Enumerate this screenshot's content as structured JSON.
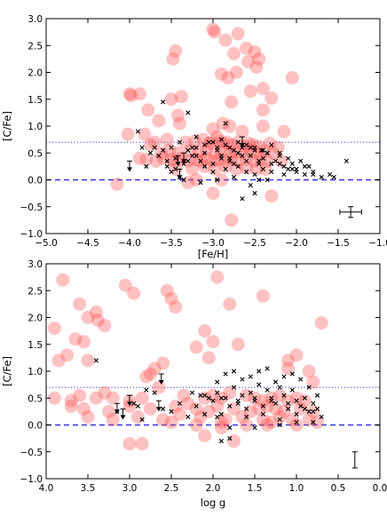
{
  "chart_data": [
    {
      "type": "scatter",
      "xlabel": "[Fe/H]",
      "ylabel": "[C/Fe]",
      "xlim": [
        -5.0,
        -1.0
      ],
      "ylim": [
        -1.0,
        3.0
      ],
      "xticks": [
        "−5.0",
        "−4.5",
        "−4.0",
        "−3.5",
        "−3.0",
        "−2.5",
        "−2.0",
        "−1.5",
        "−1.0"
      ],
      "yticks": [
        "−1.0",
        "−0.5",
        "0.0",
        "0.5",
        "1.0",
        "1.5",
        "2.0",
        "2.5",
        "3.0"
      ],
      "xtick_values": [
        -5.0,
        -4.5,
        -4.0,
        -3.5,
        -3.0,
        -2.5,
        -2.0,
        -1.5,
        -1.0
      ],
      "ytick_values": [
        -1.0,
        -0.5,
        0.0,
        0.5,
        1.0,
        1.5,
        2.0,
        2.5,
        3.0
      ],
      "hlines": [
        {
          "y": 0.0,
          "style": "dashed",
          "color": "#3333dd"
        },
        {
          "y": 0.7,
          "style": "dotted",
          "color": "#3333dd"
        }
      ],
      "error_bar": {
        "x": -1.35,
        "y": -0.6,
        "xerr": 0.13,
        "yerr": 0.1
      },
      "series": [
        {
          "marker": "circle",
          "color": "#ff4d4d",
          "x": [
            -3.0,
            -2.98,
            -2.7,
            -2.85,
            -3.45,
            -3.48,
            -2.6,
            -2.75,
            -2.5,
            -2.45,
            -2.58,
            -2.48,
            -2.72,
            -2.9,
            -2.82,
            -2.05,
            -2.4,
            -2.55,
            -4.0,
            -3.98,
            -3.88,
            -2.78,
            -3.5,
            -3.38,
            -2.3,
            -2.4,
            -3.42,
            -3.78,
            -3.65,
            -3.4,
            -2.88,
            -2.8,
            -2.4,
            -4.02,
            -3.82,
            -3.0,
            -2.95,
            -2.65,
            -2.15,
            -3.75,
            -3.7,
            -3.55,
            -3.33,
            -3.22,
            -3.12,
            -3.05,
            -3.02,
            -2.92,
            -2.88,
            -2.83,
            -2.77,
            -2.7,
            -2.62,
            -2.57,
            -2.52,
            -2.45,
            -2.32,
            -2.22,
            -3.62,
            -3.52,
            -3.42,
            -3.27,
            -3.17,
            -3.08,
            -2.97,
            -2.9,
            -2.8,
            -2.73,
            -2.63,
            -2.55,
            -2.47,
            -2.38,
            -2.28,
            -3.88,
            -3.8,
            -3.68,
            -3.6,
            -3.5,
            -3.45,
            -3.38,
            -3.3,
            -3.2,
            -3.15,
            -3.08,
            -3.0,
            -2.93,
            -2.85,
            -2.78,
            -2.7,
            -2.6,
            -2.5,
            -2.43,
            -2.35,
            -2.18,
            -3.45,
            -3.25,
            -3.1,
            -2.98,
            -2.85,
            -2.72,
            -2.6,
            -2.48,
            -2.37,
            -3.0,
            -2.3,
            -2.78,
            -2.9,
            -3.2,
            -3.3,
            -4.15
          ],
          "y": [
            2.8,
            2.75,
            2.72,
            2.6,
            2.4,
            2.25,
            2.45,
            2.35,
            2.38,
            2.25,
            2.2,
            2.1,
            2.0,
            1.97,
            1.9,
            1.9,
            1.7,
            1.65,
            1.6,
            1.57,
            1.6,
            1.45,
            1.5,
            1.55,
            1.52,
            1.3,
            1.2,
            1.3,
            1.1,
            1.05,
            1.05,
            1.0,
            1.0,
            0.85,
            0.85,
            0.95,
            0.8,
            0.9,
            0.9,
            0.65,
            0.7,
            0.75,
            0.7,
            0.72,
            0.75,
            0.68,
            0.7,
            0.72,
            0.68,
            0.7,
            0.65,
            0.7,
            0.62,
            0.68,
            0.65,
            0.62,
            0.68,
            0.6,
            0.5,
            0.55,
            0.5,
            0.55,
            0.52,
            0.55,
            0.5,
            0.55,
            0.5,
            0.52,
            0.5,
            0.55,
            0.5,
            0.55,
            0.5,
            0.4,
            0.38,
            0.35,
            0.4,
            0.38,
            0.35,
            0.4,
            0.35,
            0.38,
            0.35,
            0.4,
            0.35,
            0.38,
            0.35,
            0.4,
            0.35,
            0.38,
            0.35,
            0.4,
            0.35,
            0.35,
            0.2,
            0.2,
            0.25,
            0.2,
            0.25,
            0.2,
            0.22,
            0.2,
            0.2,
            -0.25,
            -0.3,
            -0.75,
            0.0,
            0.0,
            -0.05,
            -0.08
          ]
        },
        {
          "marker": "x",
          "color": "#000000",
          "x": [
            -3.8,
            -3.75,
            -3.7,
            -3.65,
            -3.6,
            -3.55,
            -3.5,
            -3.45,
            -3.4,
            -3.35,
            -3.3,
            -3.25,
            -3.2,
            -3.15,
            -3.1,
            -3.05,
            -3.0,
            -2.95,
            -2.9,
            -2.85,
            -2.8,
            -2.75,
            -2.7,
            -2.65,
            -2.6,
            -2.55,
            -2.5,
            -2.45,
            -2.4,
            -2.35,
            -2.3,
            -2.25,
            -2.2,
            -2.15,
            -2.1,
            -2.05,
            -2.0,
            -1.95,
            -1.9,
            -1.85,
            -1.8,
            -1.7,
            -1.6,
            -1.55,
            -1.4,
            -3.9,
            -3.85,
            -3.55,
            -3.5,
            -3.45,
            -3.4,
            -3.3,
            -3.25,
            -3.2,
            -3.1,
            -3.0,
            -2.95,
            -2.9,
            -2.85,
            -2.8,
            -2.75,
            -2.7,
            -2.65,
            -2.6,
            -2.55,
            -2.5,
            -2.45,
            -2.4,
            -2.35,
            -2.3,
            -2.2,
            -2.1,
            -3.2,
            -3.1,
            -3.0,
            -2.9,
            -2.8,
            -2.7,
            -2.6,
            -2.5,
            -2.4,
            -2.3,
            -2.2,
            -2.0,
            -1.9,
            -3.35,
            -3.15,
            -2.95,
            -2.75,
            -2.55,
            -2.35,
            -2.65,
            -2.5,
            -2.45,
            -2.42,
            -2.15,
            -2.05,
            -1.8,
            -3.3,
            -2.85,
            -3.6
          ],
          "y": [
            0.25,
            0.5,
            0.6,
            0.45,
            0.55,
            0.35,
            0.6,
            0.4,
            0.7,
            0.3,
            0.55,
            0.45,
            0.6,
            0.35,
            0.5,
            0.7,
            0.3,
            0.55,
            0.45,
            0.65,
            0.4,
            0.3,
            0.5,
            0.6,
            0.35,
            0.45,
            0.55,
            0.3,
            0.4,
            0.5,
            0.3,
            0.35,
            0.45,
            0.25,
            0.4,
            0.3,
            0.2,
            0.35,
            0.1,
            0.25,
            0.15,
            0.05,
            0.1,
            0.05,
            0.35,
            0.9,
            0.6,
            0.25,
            0.15,
            0.2,
            0.05,
            0.35,
            0.6,
            0.45,
            0.25,
            0.15,
            0.6,
            0.4,
            0.2,
            0.35,
            0.55,
            0.25,
            0.45,
            0.15,
            0.6,
            0.1,
            0.35,
            0.2,
            0.5,
            0.15,
            0.3,
            0.2,
            0.8,
            0.65,
            0.7,
            0.75,
            0.6,
            0.7,
            0.65,
            0.6,
            0.55,
            0.65,
            0.5,
            0.15,
            0.25,
            0.0,
            -0.05,
            0.0,
            0.05,
            -0.1,
            0.0,
            -0.35,
            -0.25,
            0.0,
            0.55,
            0.1,
            0.2,
            0.1,
            1.25,
            1.05,
            1.45
          ]
        }
      ],
      "upper_limits": {
        "x": [
          -3.42,
          -3.35,
          -2.65,
          -4.0,
          -3.4
        ],
        "y": [
          0.45,
          0.5,
          0.8,
          0.35,
          0.2
        ]
      }
    },
    {
      "type": "scatter",
      "xlabel": "log g",
      "ylabel": "[C/Fe]",
      "xlim": [
        4.0,
        0.0
      ],
      "ylim": [
        -1.0,
        3.0
      ],
      "xticks": [
        "4.0",
        "3.5",
        "3.0",
        "2.5",
        "2.0",
        "1.5",
        "1.0",
        "0.5",
        "0.0"
      ],
      "yticks": [
        "−1.0",
        "−0.5",
        "0.0",
        "0.5",
        "1.0",
        "1.5",
        "2.0",
        "2.5",
        "3.0"
      ],
      "xtick_values": [
        4.0,
        3.5,
        3.0,
        2.5,
        2.0,
        1.5,
        1.0,
        0.5,
        0.0
      ],
      "ytick_values": [
        -1.0,
        -0.5,
        0.0,
        0.5,
        1.0,
        1.5,
        2.0,
        2.5,
        3.0
      ],
      "hlines": [
        {
          "y": 0.0,
          "style": "dashed",
          "color": "#3333dd"
        },
        {
          "y": 0.7,
          "style": "dotted",
          "color": "#3333dd"
        }
      ],
      "error_bar": {
        "x": 0.3,
        "y": -0.65,
        "xerr": 0,
        "yerr": 0.15
      },
      "series": [
        {
          "marker": "circle",
          "color": "#ff4d4d",
          "x": [
            1.95,
            3.8,
            3.05,
            2.95,
            2.55,
            2.5,
            2.45,
            1.8,
            3.6,
            3.5,
            3.55,
            1.4,
            3.9,
            3.65,
            2.1,
            2.0,
            0.7,
            3.4,
            3.38,
            3.3,
            3.75,
            3.85,
            2.2,
            1.7,
            2.6,
            3.5,
            2.75,
            1.0,
            1.1,
            0.85,
            2.7,
            2.8,
            0.8,
            2.65,
            3.9,
            3.7,
            3.6,
            3.4,
            3.3,
            3.2,
            3.0,
            2.85,
            2.35,
            2.3,
            2.1,
            2.0,
            1.9,
            1.8,
            1.6,
            1.5,
            1.4,
            1.3,
            1.2,
            1.1,
            1.0,
            0.9,
            3.7,
            3.55,
            3.25,
            3.0,
            2.75,
            2.45,
            2.2,
            2.05,
            1.95,
            1.75,
            1.55,
            1.45,
            1.35,
            1.25,
            1.15,
            0.95,
            0.8,
            3.5,
            3.2,
            2.9,
            2.6,
            2.4,
            2.15,
            1.85,
            1.65,
            1.4,
            1.2,
            1.05,
            0.85,
            0.75,
            2.5,
            2.2,
            1.9,
            1.6,
            1.3,
            1.0,
            3.0,
            2.1,
            1.75,
            2.85,
            1.9,
            1.35,
            2.05,
            1.1
          ],
          "y": [
            2.75,
            2.7,
            2.6,
            2.45,
            2.5,
            2.35,
            2.2,
            2.25,
            2.25,
            2.0,
            1.55,
            2.4,
            1.8,
            1.6,
            1.75,
            1.55,
            1.9,
            2.1,
            1.95,
            1.85,
            1.3,
            1.2,
            1.45,
            1.5,
            1.15,
            1.2,
            0.95,
            1.3,
            1.05,
            1.0,
            1.05,
            0.9,
            0.8,
            0.7,
            0.5,
            0.45,
            0.55,
            0.5,
            0.6,
            0.5,
            0.45,
            0.5,
            0.55,
            0.4,
            0.5,
            0.55,
            0.5,
            0.6,
            0.55,
            0.5,
            0.45,
            0.5,
            0.55,
            0.45,
            0.5,
            0.45,
            0.35,
            0.3,
            0.25,
            0.35,
            0.3,
            0.35,
            0.3,
            0.25,
            0.35,
            0.3,
            0.25,
            0.3,
            0.35,
            0.3,
            0.25,
            0.3,
            0.25,
            0.15,
            0.1,
            0.15,
            0.1,
            0.2,
            0.15,
            0.1,
            0.15,
            0.1,
            0.15,
            0.1,
            0.1,
            0.05,
            0.05,
            0.0,
            0.05,
            0.0,
            0.05,
            0.0,
            -0.35,
            -0.2,
            -0.3,
            -0.35,
            -0.05,
            0.0,
            1.25,
            1.2
          ]
        },
        {
          "marker": "x",
          "color": "#000000",
          "x": [
            2.95,
            2.8,
            2.7,
            2.6,
            2.5,
            2.4,
            2.3,
            2.2,
            2.1,
            2.0,
            1.95,
            1.9,
            1.85,
            1.8,
            1.75,
            1.7,
            1.65,
            1.6,
            1.55,
            1.5,
            1.45,
            1.4,
            1.35,
            1.3,
            1.25,
            1.2,
            1.15,
            1.1,
            1.05,
            1.0,
            0.95,
            0.9,
            0.85,
            0.8,
            0.75,
            1.95,
            1.85,
            1.75,
            1.65,
            1.55,
            1.45,
            1.35,
            1.25,
            1.15,
            1.05,
            0.95,
            0.85,
            2.25,
            2.15,
            2.05,
            1.9,
            1.7,
            1.5,
            1.3,
            1.1,
            0.9,
            1.6,
            1.4,
            1.2,
            1.0,
            0.8,
            0.7,
            1.8,
            1.5,
            1.2,
            1.0,
            0.8,
            3.15,
            2.9,
            2.85,
            2.1,
            1.95,
            0.75,
            1.9,
            1.8,
            3.4
          ],
          "y": [
            0.4,
            0.65,
            0.6,
            0.3,
            0.25,
            0.4,
            0.15,
            0.35,
            0.55,
            0.45,
            0.6,
            0.2,
            0.5,
            0.35,
            0.7,
            0.4,
            0.55,
            0.3,
            0.6,
            0.45,
            0.75,
            0.35,
            0.65,
            0.5,
            0.4,
            0.7,
            0.55,
            0.3,
            0.65,
            0.45,
            0.35,
            0.5,
            0.25,
            0.4,
            0.55,
            0.8,
            0.95,
            1.0,
            0.85,
            0.9,
            1.0,
            1.05,
            0.8,
            0.9,
            0.95,
            0.85,
            0.7,
            0.6,
            0.55,
            0.5,
            0.5,
            0.45,
            0.5,
            0.45,
            0.4,
            0.3,
            0.15,
            0.2,
            0.1,
            0.2,
            0.25,
            0.15,
            -0.05,
            -0.05,
            0.0,
            0.05,
            0.05,
            0.25,
            0.35,
            0.1,
            0.2,
            0.15,
            0.3,
            -0.3,
            -0.25,
            1.2
          ]
        }
      ],
      "upper_limits": {
        "x": [
          3.15,
          2.65,
          3.0,
          3.08,
          2.62
        ],
        "y": [
          0.4,
          0.45,
          0.55,
          0.3,
          0.95
        ]
      }
    }
  ]
}
